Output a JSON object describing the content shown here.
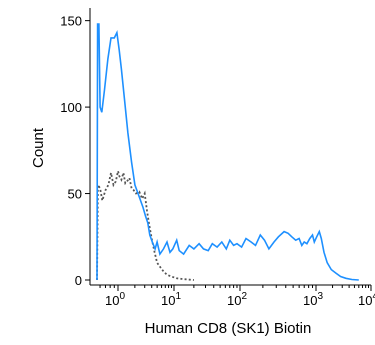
{
  "chart_data": {
    "type": "line",
    "xlabel": "Human CD8 (SK1) Biotin",
    "ylabel": "Count",
    "x_scale": "biexponential-log",
    "xlim": [
      0.5,
      10000
    ],
    "ylim": [
      0,
      155
    ],
    "x_ticks": [
      {
        "value": 1,
        "base": "10",
        "exp": "0"
      },
      {
        "value": 10,
        "base": "10",
        "exp": "1"
      },
      {
        "value": 100,
        "base": "10",
        "exp": "2"
      },
      {
        "value": 1000,
        "base": "10",
        "exp": "3"
      },
      {
        "value": 10000,
        "base": "10",
        "exp": "4"
      }
    ],
    "y_ticks": [
      0,
      50,
      100,
      150
    ],
    "grid": false,
    "legend": "none",
    "series": [
      {
        "style": "solid",
        "color": "#1e90ff",
        "points": [
          [
            0.55,
            0
          ],
          [
            0.56,
            148
          ],
          [
            0.58,
            148
          ],
          [
            0.6,
            100
          ],
          [
            0.63,
            97
          ],
          [
            0.68,
            110
          ],
          [
            0.75,
            128
          ],
          [
            0.82,
            140
          ],
          [
            0.9,
            140
          ],
          [
            0.97,
            143
          ],
          [
            1.05,
            133
          ],
          [
            1.15,
            122
          ],
          [
            1.3,
            105
          ],
          [
            1.5,
            85
          ],
          [
            1.75,
            68
          ],
          [
            2.0,
            55
          ],
          [
            2.4,
            48
          ],
          [
            2.8,
            42
          ],
          [
            3.1,
            37
          ],
          [
            3.4,
            33
          ],
          [
            3.7,
            26
          ],
          [
            4.1,
            22
          ],
          [
            4.6,
            18
          ],
          [
            5.0,
            22
          ],
          [
            5.6,
            15
          ],
          [
            6.5,
            18
          ],
          [
            7.5,
            22
          ],
          [
            8.5,
            16
          ],
          [
            9.5,
            18
          ],
          [
            11,
            23
          ],
          [
            12,
            17
          ],
          [
            14,
            15
          ],
          [
            17,
            20
          ],
          [
            20,
            18
          ],
          [
            24,
            21
          ],
          [
            28,
            18
          ],
          [
            33,
            17
          ],
          [
            38,
            21
          ],
          [
            45,
            19
          ],
          [
            53,
            22
          ],
          [
            62,
            18
          ],
          [
            70,
            23
          ],
          [
            80,
            20
          ],
          [
            90,
            21
          ],
          [
            105,
            19
          ],
          [
            120,
            24
          ],
          [
            140,
            22
          ],
          [
            160,
            20
          ],
          [
            185,
            26
          ],
          [
            210,
            23
          ],
          [
            240,
            18
          ],
          [
            280,
            22
          ],
          [
            320,
            25
          ],
          [
            380,
            28
          ],
          [
            430,
            27
          ],
          [
            480,
            25
          ],
          [
            540,
            23
          ],
          [
            600,
            24
          ],
          [
            650,
            20
          ],
          [
            700,
            22
          ],
          [
            760,
            21
          ],
          [
            830,
            24
          ],
          [
            900,
            26
          ],
          [
            950,
            22
          ],
          [
            1030,
            25
          ],
          [
            1150,
            28
          ],
          [
            1250,
            24
          ],
          [
            1400,
            16
          ],
          [
            1600,
            10
          ],
          [
            1900,
            6
          ],
          [
            2300,
            4
          ],
          [
            2800,
            2
          ],
          [
            3500,
            1
          ],
          [
            4500,
            0.3
          ],
          [
            6000,
            0
          ]
        ]
      },
      {
        "style": "dotted",
        "color": "#555555",
        "points": [
          [
            0.55,
            0
          ],
          [
            0.565,
            55
          ],
          [
            0.6,
            53
          ],
          [
            0.64,
            46
          ],
          [
            0.7,
            52
          ],
          [
            0.76,
            55
          ],
          [
            0.82,
            62
          ],
          [
            0.88,
            55
          ],
          [
            0.94,
            57
          ],
          [
            1.0,
            63
          ],
          [
            1.06,
            60
          ],
          [
            1.15,
            58
          ],
          [
            1.25,
            62
          ],
          [
            1.35,
            56
          ],
          [
            1.45,
            57
          ],
          [
            1.6,
            59
          ],
          [
            1.75,
            53
          ],
          [
            1.9,
            52
          ],
          [
            2.1,
            50
          ],
          [
            2.4,
            51
          ],
          [
            2.7,
            47
          ],
          [
            3.0,
            50
          ],
          [
            3.3,
            40
          ],
          [
            3.6,
            32
          ],
          [
            4.0,
            24
          ],
          [
            4.5,
            16
          ],
          [
            5.0,
            10
          ],
          [
            5.8,
            7
          ],
          [
            6.5,
            5
          ],
          [
            7.5,
            3
          ],
          [
            9.0,
            2
          ],
          [
            11,
            1
          ],
          [
            14,
            0.5
          ],
          [
            20,
            0
          ]
        ]
      }
    ]
  }
}
